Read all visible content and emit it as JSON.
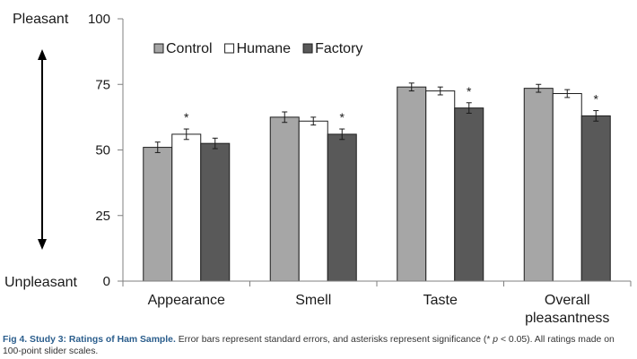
{
  "chart_data": {
    "type": "bar",
    "categories": [
      "Appearance",
      "Smell",
      "Taste",
      "Overall pleasantness"
    ],
    "series": [
      {
        "name": "Control",
        "values": [
          51,
          62.5,
          74,
          73.5
        ],
        "errors": [
          2,
          2,
          1.5,
          1.5
        ]
      },
      {
        "name": "Humane",
        "values": [
          56,
          61,
          72.5,
          71.5
        ],
        "errors": [
          2,
          1.5,
          1.5,
          1.5
        ]
      },
      {
        "name": "Factory",
        "values": [
          52.5,
          56,
          66,
          63
        ],
        "errors": [
          2,
          2,
          2,
          2
        ]
      }
    ],
    "significance": [
      {
        "category": 0,
        "series": 1,
        "marker": "*"
      },
      {
        "category": 1,
        "series": 2,
        "marker": "*"
      },
      {
        "category": 2,
        "series": 2,
        "marker": "*"
      },
      {
        "category": 3,
        "series": 2,
        "marker": "*"
      }
    ],
    "ylim": [
      0,
      100
    ],
    "yticks": [
      0,
      25,
      50,
      75,
      100
    ],
    "y_end_labels": {
      "top": "Pleasant",
      "bottom": "Unpleasant"
    },
    "legend_position": "top-left",
    "grid": false,
    "colors": {
      "Control": "#a6a6a6",
      "Humane": "#ffffff",
      "Factory": "#595959",
      "axis": "#7f7f7f",
      "caption_blue": "#2a5d8c"
    }
  },
  "caption": {
    "label": "Fig 4. Study 3: Ratings of Ham Sample.",
    "body_before": "Error bars represent standard errors, and asterisks represent significance (* ",
    "p_symbol": "p",
    "body_after": " < 0.05). All ratings made on 100-point slider scales."
  }
}
